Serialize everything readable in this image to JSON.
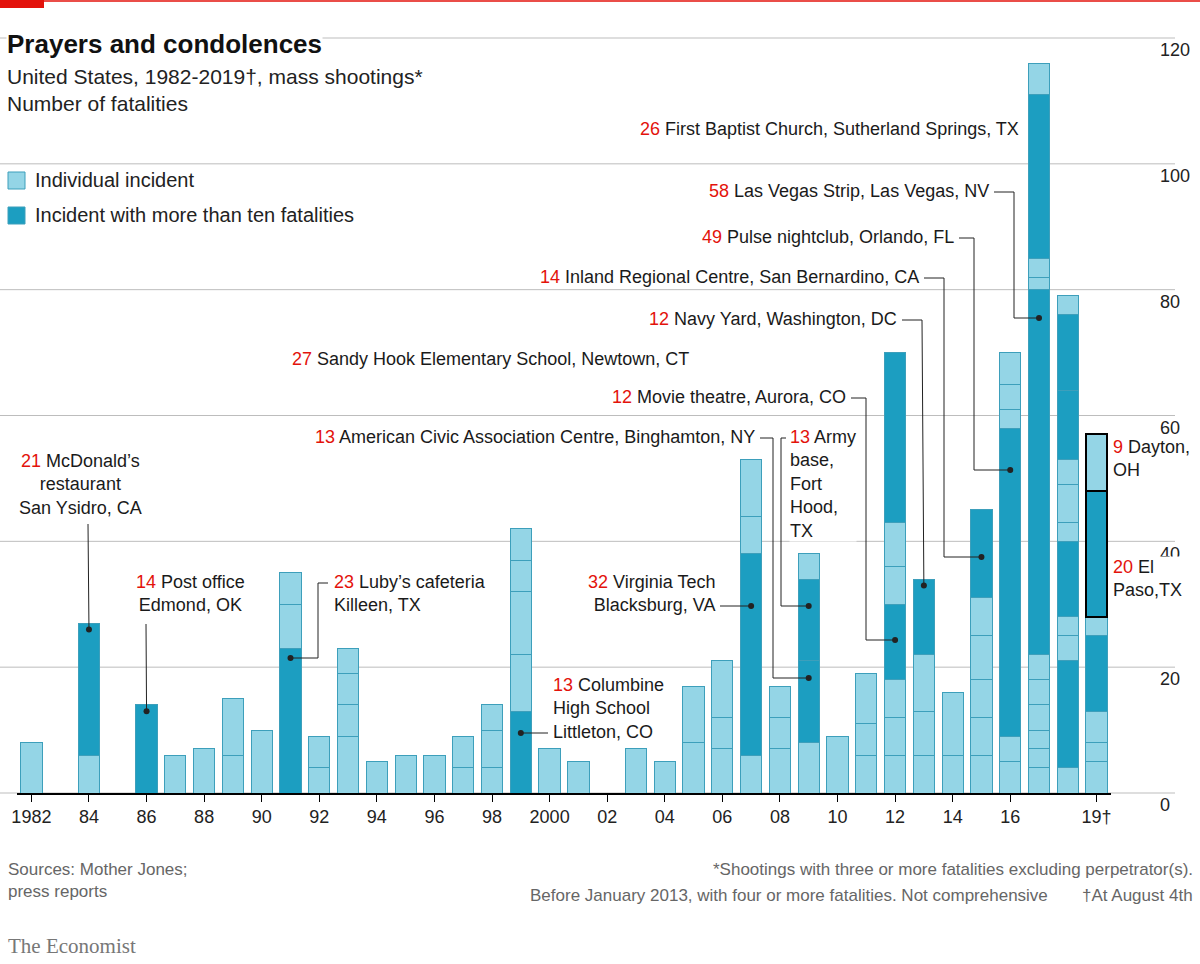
{
  "chart_data": {
    "type": "bar",
    "title": "Prayers and condolences",
    "subtitle": "United States, 1982-2019†, mass shootings*\nNumber of fatalities",
    "source": "Sources: Mother Jones;\npress reports",
    "notes": [
      "*Shootings with three or more fatalities excluding perpetrator(s).",
      "Before January 2013, with four or more fatalities. Not comprehensive"
    ],
    "date_note": "†At August 4th",
    "publisher": "The Economist",
    "stacked": true,
    "grid": true,
    "legend": "upper left",
    "ylim": [
      0,
      120
    ],
    "yticks": [
      0,
      20,
      40,
      60,
      80,
      100,
      120
    ],
    "series": [
      {
        "name": "Individual incident",
        "color": "#94d5e6"
      },
      {
        "name": "Incident with more than ten fatalities",
        "color": "#1c9ec1"
      }
    ],
    "categories": [
      "1982",
      null,
      "84",
      null,
      "86",
      null,
      "88",
      null,
      "90",
      null,
      "92",
      null,
      "94",
      null,
      "96",
      null,
      "98",
      null,
      "2000",
      null,
      "02",
      null,
      "04",
      null,
      "06",
      null,
      "08",
      null,
      "10",
      null,
      "12",
      null,
      "14",
      null,
      "16",
      null,
      null,
      "19†"
    ],
    "stacks": [
      [
        {
          "value": 8,
          "series": 0
        }
      ],
      [],
      [
        {
          "value": 6,
          "series": 0
        },
        {
          "value": 21,
          "series": 1,
          "label": "McDonald’s\nrestaurant\nSan Ysidro, CA"
        }
      ],
      [],
      [
        {
          "value": 14,
          "series": 1,
          "label": "Post office\nEdmond, OK"
        }
      ],
      [
        {
          "value": 6,
          "series": 0
        }
      ],
      [
        {
          "value": 7,
          "series": 0
        }
      ],
      [
        {
          "value": 6,
          "series": 0
        },
        {
          "value": 9,
          "series": 0
        }
      ],
      [
        {
          "value": 10,
          "series": 0
        }
      ],
      [
        {
          "value": 23,
          "series": 1,
          "label": "Luby’s cafeteria\nKilleen, TX"
        },
        {
          "value": 7,
          "series": 0
        },
        {
          "value": 5,
          "series": 0
        }
      ],
      [
        {
          "value": 4,
          "series": 0
        },
        {
          "value": 5,
          "series": 0
        }
      ],
      [
        {
          "value": 9,
          "series": 0
        },
        {
          "value": 5,
          "series": 0
        },
        {
          "value": 5,
          "series": 0
        },
        {
          "value": 4,
          "series": 0
        }
      ],
      [
        {
          "value": 5,
          "series": 0
        }
      ],
      [
        {
          "value": 6,
          "series": 0
        }
      ],
      [
        {
          "value": 6,
          "series": 0
        }
      ],
      [
        {
          "value": 4,
          "series": 0
        },
        {
          "value": 5,
          "series": 0
        }
      ],
      [
        {
          "value": 4,
          "series": 0
        },
        {
          "value": 6,
          "series": 0
        },
        {
          "value": 4,
          "series": 0
        }
      ],
      [
        {
          "value": 13,
          "series": 1,
          "label": "Columbine\nHigh School\nLittleton, CO"
        },
        {
          "value": 9,
          "series": 0
        },
        {
          "value": 10,
          "series": 0
        },
        {
          "value": 5,
          "series": 0
        },
        {
          "value": 5,
          "series": 0
        }
      ],
      [
        {
          "value": 7,
          "series": 0
        }
      ],
      [
        {
          "value": 5,
          "series": 0
        }
      ],
      [],
      [
        {
          "value": 7,
          "series": 0
        }
      ],
      [
        {
          "value": 5,
          "series": 0
        }
      ],
      [
        {
          "value": 8,
          "series": 0
        },
        {
          "value": 9,
          "series": 0
        }
      ],
      [
        {
          "value": 7,
          "series": 0
        },
        {
          "value": 5,
          "series": 0
        },
        {
          "value": 9,
          "series": 0
        }
      ],
      [
        {
          "value": 6,
          "series": 0
        },
        {
          "value": 32,
          "series": 1,
          "label": "Virginia Tech\nBlacksburg, VA"
        },
        {
          "value": 6,
          "series": 0
        },
        {
          "value": 9,
          "series": 0
        }
      ],
      [
        {
          "value": 7,
          "series": 0
        },
        {
          "value": 5,
          "series": 0
        },
        {
          "value": 5,
          "series": 0
        }
      ],
      [
        {
          "value": 8,
          "series": 0
        },
        {
          "value": 13,
          "series": 1,
          "label": "American Civic Association Centre, Binghamton, NY"
        },
        {
          "value": 13,
          "series": 1,
          "label": "Army\nbase,\nFort\nHood,\nTX"
        },
        {
          "value": 4,
          "series": 0
        }
      ],
      [
        {
          "value": 9,
          "series": 0
        }
      ],
      [
        {
          "value": 6,
          "series": 0
        },
        {
          "value": 5,
          "series": 0
        },
        {
          "value": 8,
          "series": 0
        }
      ],
      [
        {
          "value": 6,
          "series": 0
        },
        {
          "value": 6,
          "series": 0
        },
        {
          "value": 6,
          "series": 0
        },
        {
          "value": 12,
          "series": 1,
          "label": "Movie theatre, Aurora, CO"
        },
        {
          "value": 6,
          "series": 0
        },
        {
          "value": 7,
          "series": 0
        },
        {
          "value": 27,
          "series": 1,
          "label": "Sandy Hook Elementary School, Newtown, CT"
        }
      ],
      [
        {
          "value": 6,
          "series": 0
        },
        {
          "value": 7,
          "series": 0
        },
        {
          "value": 9,
          "series": 0
        },
        {
          "value": 12,
          "series": 1,
          "label": "Navy Yard, Washington, DC"
        }
      ],
      [
        {
          "value": 6,
          "series": 0
        },
        {
          "value": 10,
          "series": 0
        }
      ],
      [
        {
          "value": 6,
          "series": 0
        },
        {
          "value": 6,
          "series": 0
        },
        {
          "value": 6,
          "series": 0
        },
        {
          "value": 7,
          "series": 0
        },
        {
          "value": 6,
          "series": 0
        },
        {
          "value": 14,
          "series": 1,
          "label": "Inland Regional Centre, San Bernardino, CA"
        }
      ],
      [
        {
          "value": 5,
          "series": 0
        },
        {
          "value": 4,
          "series": 0
        },
        {
          "value": 49,
          "series": 1,
          "label": "Pulse nightclub, Orlando, FL"
        },
        {
          "value": 3,
          "series": 0
        },
        {
          "value": 4,
          "series": 0
        },
        {
          "value": 5,
          "series": 0
        }
      ],
      [
        {
          "value": 4,
          "series": 0
        },
        {
          "value": 3,
          "series": 0
        },
        {
          "value": 3,
          "series": 0
        },
        {
          "value": 4,
          "series": 0
        },
        {
          "value": 4,
          "series": 0
        },
        {
          "value": 4,
          "series": 0
        },
        {
          "value": 58,
          "series": 1,
          "label": "Las Vegas Strip, Las Vegas, NV"
        },
        {
          "value": 2,
          "series": 0
        },
        {
          "value": 3,
          "series": 0
        },
        {
          "value": 26,
          "series": 1,
          "label": "First Baptist Church, Sutherland Springs, TX"
        },
        {
          "value": 5,
          "series": 0
        }
      ],
      [
        {
          "value": 4,
          "series": 0
        },
        {
          "value": 17,
          "series": 1
        },
        {
          "value": 4,
          "series": 0
        },
        {
          "value": 3,
          "series": 0
        },
        {
          "value": 12,
          "series": 1
        },
        {
          "value": 3,
          "series": 0
        },
        {
          "value": 6,
          "series": 0
        },
        {
          "value": 4,
          "series": 0
        },
        {
          "value": 11,
          "series": 1
        },
        {
          "value": 12,
          "series": 1
        },
        {
          "value": 3,
          "series": 0
        }
      ],
      [
        {
          "value": 5,
          "series": 0
        },
        {
          "value": 3,
          "series": 0
        },
        {
          "value": 5,
          "series": 0
        },
        {
          "value": 12,
          "series": 1
        },
        {
          "value": 3,
          "series": 0
        },
        {
          "value": 20,
          "series": 1,
          "label": "El\nPaso,TX"
        },
        {
          "value": 9,
          "series": 0,
          "label": "Dayton,\nOH"
        }
      ]
    ]
  }
}
